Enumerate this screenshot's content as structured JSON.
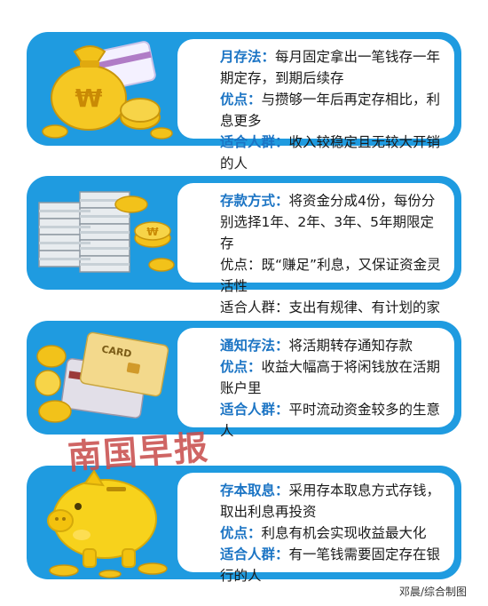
{
  "panels": [
    {
      "illustration": "money-bag-and-coins",
      "rows": [
        {
          "label": "月存法：",
          "text": "每月固定拿出一笔钱存一年期定存，到期后续存"
        },
        {
          "label": "优点：",
          "text": "与攒够一年后再定存相比，利息更多"
        },
        {
          "label": "适合人群：",
          "text": "收入较稳定且无较大开销的人"
        }
      ]
    },
    {
      "illustration": "cash-stacks-and-coins",
      "rows": [
        {
          "label": "存款方式：",
          "text": "将资金分成4份，每份分别选择1年、2年、3年、5年期限定存"
        },
        {
          "label": "优点：",
          "text": "既“赚足”利息，又保证资金灵活性"
        },
        {
          "label": "适合人群：",
          "text": "支出有规律、有计划的家庭"
        }
      ]
    },
    {
      "illustration": "bank-cards-and-coins",
      "card_text": "CARD",
      "rows": [
        {
          "label": "通知存法：",
          "text": "将活期转存通知存款"
        },
        {
          "label": "优点：",
          "text": "收益大幅高于将闲钱放在活期账户里"
        },
        {
          "label": "适合人群：",
          "text": "平时流动资金较多的生意人"
        }
      ]
    },
    {
      "illustration": "piggy-bank-and-coins",
      "rows": [
        {
          "label": "存本取息：",
          "text": "采用存本取息方式存钱，取出利息再投资"
        },
        {
          "label": "优点：",
          "text": "利息有机会实现收益最大化"
        },
        {
          "label": "适合人群：",
          "text": "有一笔钱需要固定存在银行的人"
        }
      ]
    }
  ],
  "watermark": "南国早报",
  "credit": "邓晨/综合制图",
  "colors": {
    "panel": "#1f9be0",
    "label": "#1b74c4",
    "gold": "#f2c21a",
    "watermark": "#c9504f"
  }
}
